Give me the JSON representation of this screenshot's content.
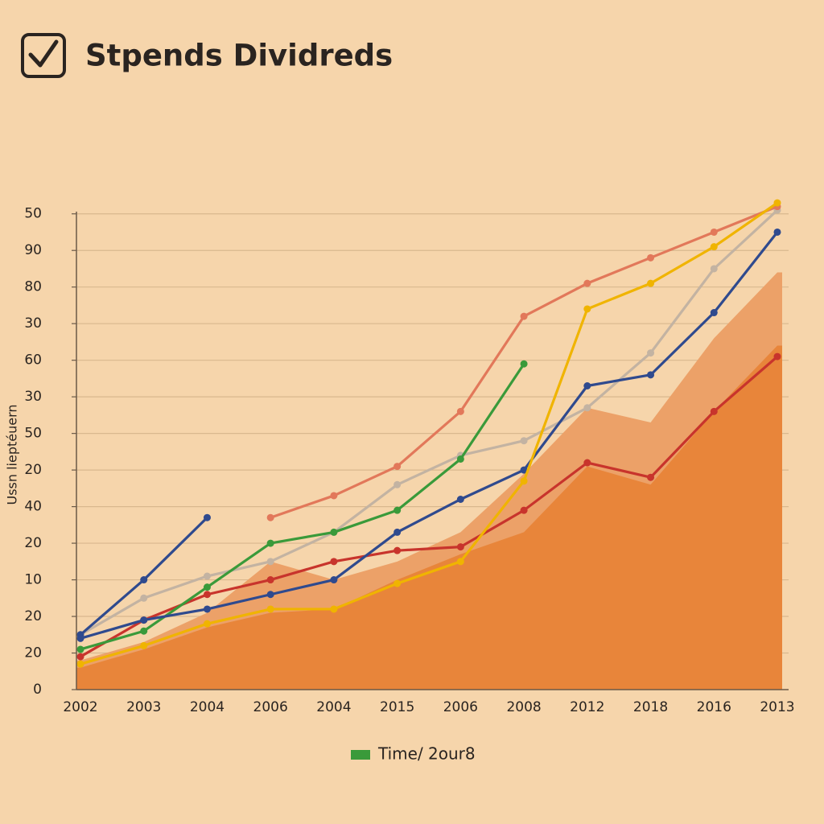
{
  "chart_data": {
    "type": "line",
    "title": "Stpends Dividreds",
    "y_label": "Ussn lieptéuern",
    "categories": [
      "2002",
      "2003",
      "2004",
      "2006",
      "2004",
      "2015",
      "2006",
      "2008",
      "2012",
      "2018",
      "2016",
      "2013"
    ],
    "ylim": [
      0,
      135
    ],
    "yticks": [
      0,
      {
        "value": 10,
        "label": "20"
      },
      20,
      {
        "value": 30,
        "label": "10"
      },
      {
        "value": 40,
        "label": "20"
      },
      {
        "value": 50,
        "label": "40"
      },
      {
        "value": 60,
        "label": "20"
      },
      {
        "value": 70,
        "label": "50"
      },
      {
        "value": 80,
        "label": "30"
      },
      {
        "value": 90,
        "label": "60"
      },
      {
        "value": 100,
        "label": "30"
      },
      {
        "value": 110,
        "label": "80"
      },
      {
        "value": 120,
        "label": "90"
      },
      {
        "value": 130,
        "label": "50"
      }
    ],
    "grid": true,
    "series": [
      {
        "color": "#eca168",
        "fill": true,
        "values": [
          8,
          13,
          21,
          35,
          30,
          35,
          43,
          59,
          77,
          73,
          96,
          114
        ]
      },
      {
        "color": "#e8853a",
        "fill": true,
        "values": [
          6,
          11,
          17,
          21,
          22,
          30,
          37,
          43,
          61,
          56,
          76,
          94
        ]
      },
      {
        "color": "#c3b3a2",
        "values": [
          15,
          25,
          31,
          35,
          43,
          56,
          64,
          68,
          77,
          92,
          115,
          131
        ]
      },
      {
        "color": "#e2785a",
        "values": [
          null,
          null,
          null,
          47,
          53,
          61,
          76,
          102,
          111,
          118,
          125,
          132
        ]
      },
      {
        "color": "#2f4a8e",
        "values": [
          15,
          30,
          47,
          null,
          null,
          null,
          null,
          null,
          null,
          null,
          null,
          null
        ]
      },
      {
        "color": "#c8342c",
        "values": [
          9,
          19,
          26,
          30,
          35,
          38,
          39,
          49,
          62,
          58,
          76,
          91
        ]
      },
      {
        "name": "Time/ 2our8",
        "color": "#3a9a3a",
        "values": [
          11,
          16,
          28,
          40,
          43,
          49,
          63,
          89,
          null,
          null,
          null,
          null
        ]
      },
      {
        "color": "#2f4a8e",
        "values": [
          14,
          19,
          22,
          26,
          30,
          43,
          52,
          60,
          83,
          86,
          103,
          125
        ]
      },
      {
        "color": "#f0b400",
        "values": [
          7,
          12,
          18,
          22,
          22,
          29,
          35,
          57,
          104,
          111,
          121,
          133
        ]
      }
    ]
  }
}
